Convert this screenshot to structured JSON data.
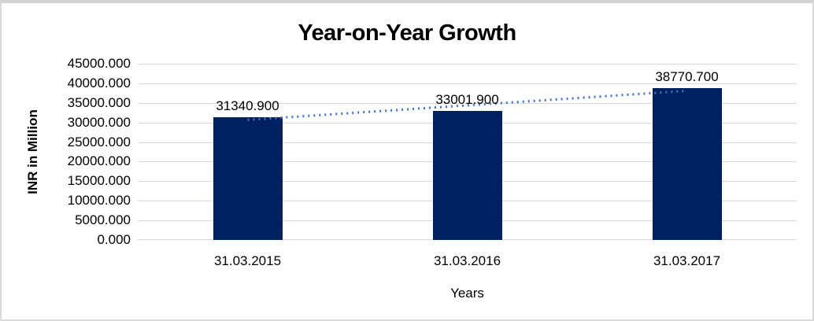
{
  "chart_data": {
    "type": "bar",
    "title": "Year-on-Year Growth",
    "xlabel": "Years",
    "ylabel": "INR in Million",
    "categories": [
      "31.03.2015",
      "31.03.2016",
      "31.03.2017"
    ],
    "values": [
      31340.9,
      33001.9,
      38770.7
    ],
    "data_labels": [
      "31340.900",
      "33001.900",
      "38770.700"
    ],
    "ylim": [
      0,
      45000
    ],
    "ytick_step": 5000,
    "ytick_labels": [
      "45000.000",
      "40000.000",
      "35000.000",
      "30000.000",
      "25000.000",
      "20000.000",
      "15000.000",
      "10000.000",
      "5000.000",
      "0.000"
    ],
    "grid": true,
    "legend": false,
    "trendline": {
      "type": "linear",
      "style": "dotted",
      "color": "#4472C4"
    },
    "colors": {
      "bar": "#002060",
      "gridline": "#D9D9D9",
      "axis_line": "#D9D9D9",
      "text": "#000000",
      "frame_border": "#D9D9D9",
      "background": "#FFFFFF"
    }
  }
}
